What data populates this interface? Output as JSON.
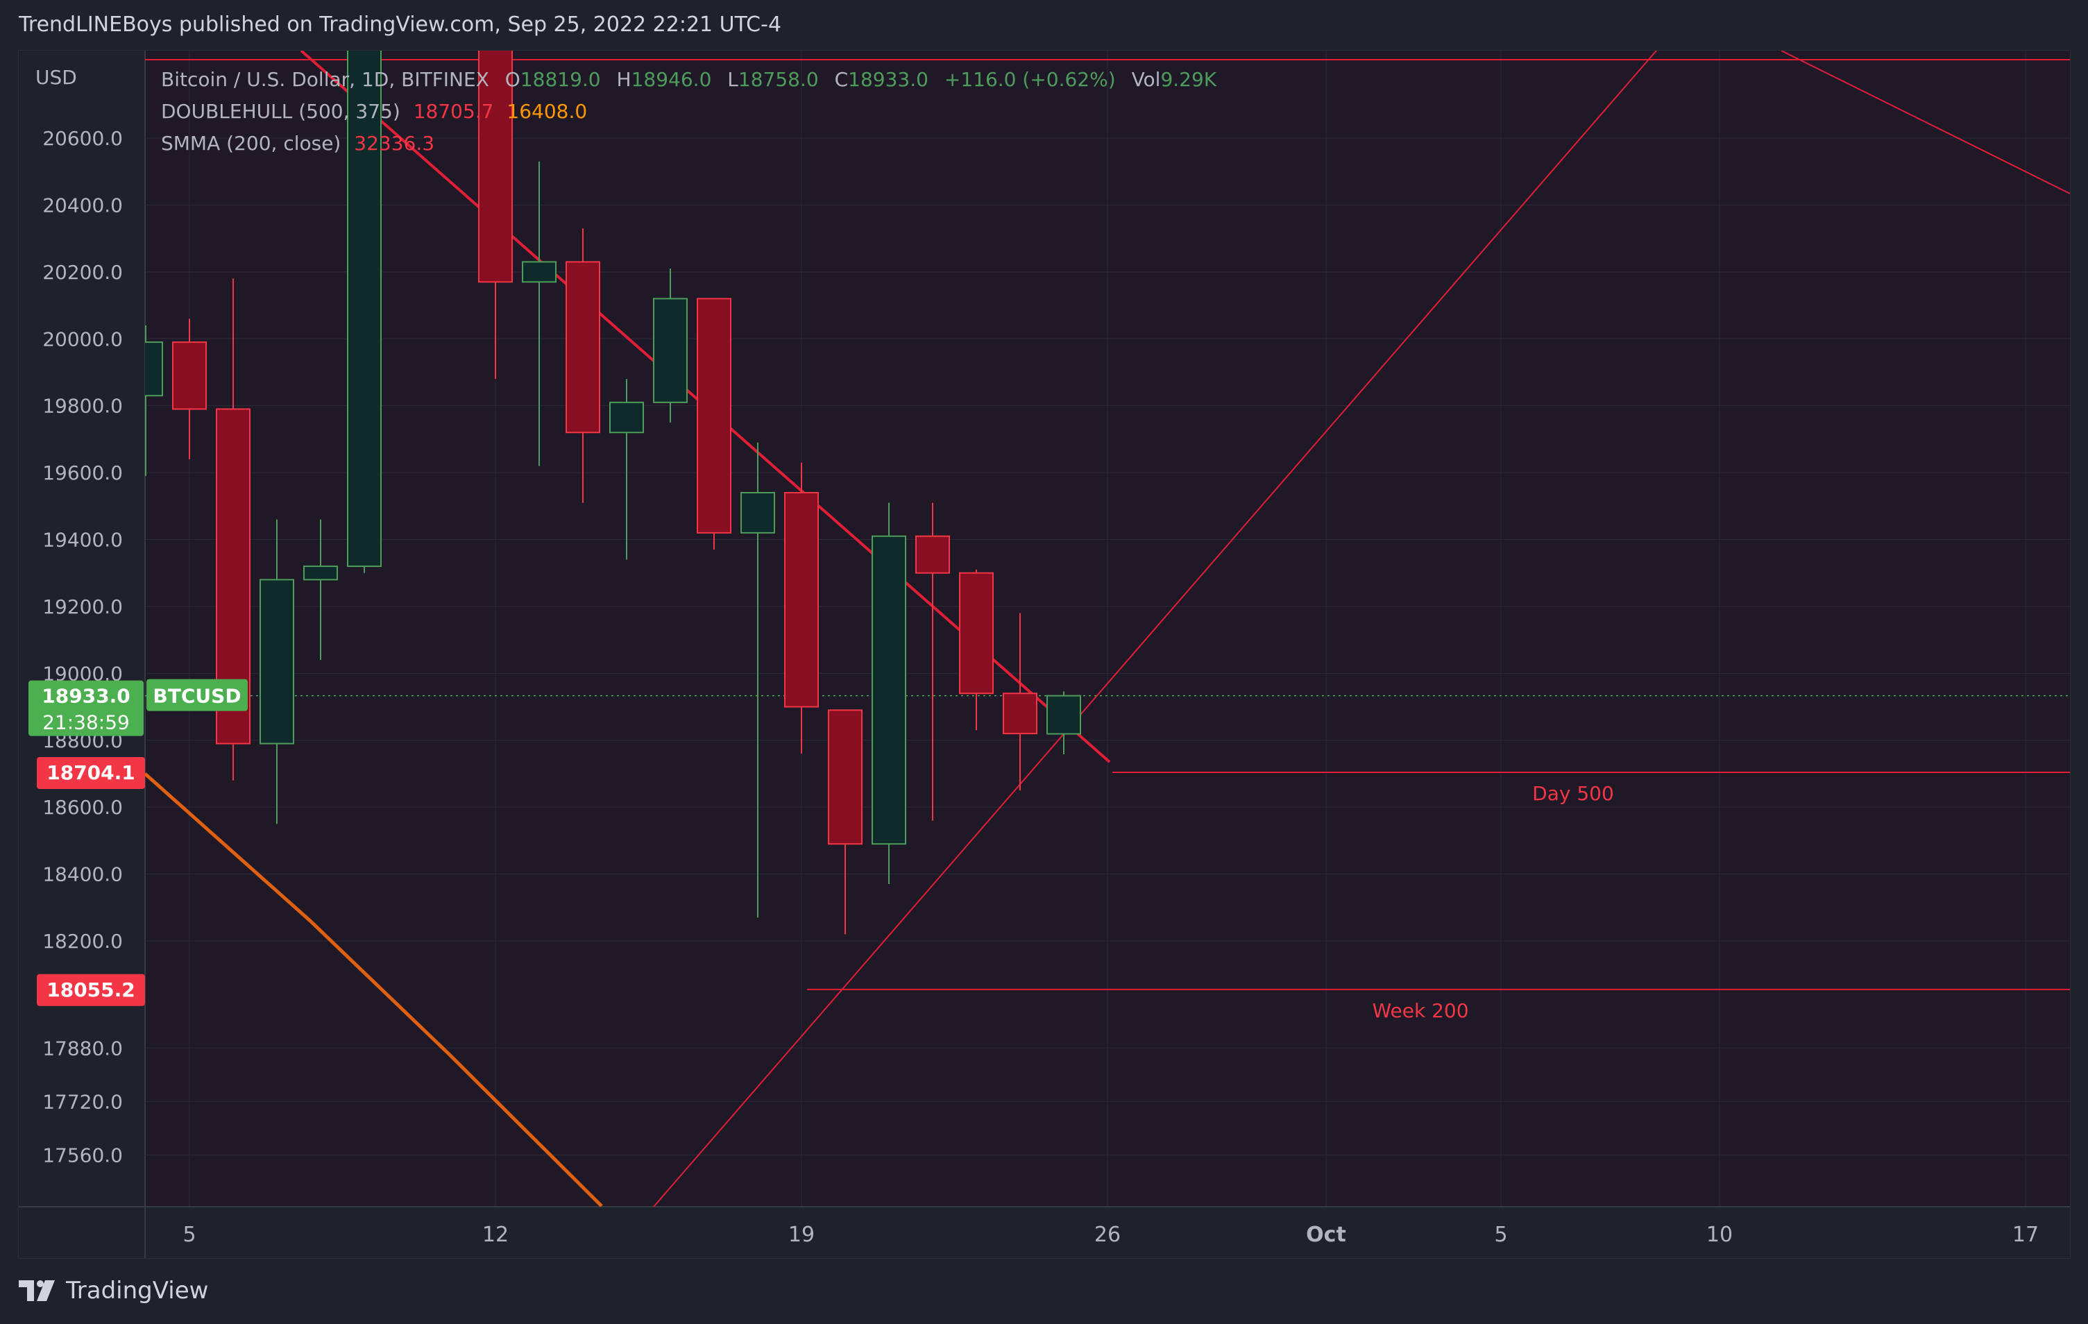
{
  "header": {
    "published_by": "TrendLINEBoys published on TradingView.com, Sep 25, 2022 22:21 UTC-4"
  },
  "legend": {
    "symbol_title": "Bitcoin / U.S. Dollar, 1D, BITFINEX",
    "o_label": "O",
    "o_value": "18819.0",
    "h_label": "H",
    "h_value": "18946.0",
    "l_label": "L",
    "l_value": "18758.0",
    "c_label": "C",
    "c_value": "18933.0",
    "change": "+116.0 (+0.62%)",
    "vol_label": "Vol",
    "vol_value": "9.29K",
    "ind1_name": "DOUBLEHULL (500, 375)",
    "ind1_v1": "18705.7",
    "ind1_v2": "16408.0",
    "ind2_name": "SMMA (200, close)",
    "ind2_v1": "32336.3"
  },
  "footer": {
    "brand": "TradingView"
  },
  "colors": {
    "up": "#4e9c5b",
    "down": "#f23645",
    "up_body": "#0e2a2a",
    "down_body": "#880e21",
    "line_red": "#e01e35",
    "line_orange": "#e06012",
    "plot_bg": "#1f1827",
    "grid": "#2c2a38",
    "axis_text": "#b2b5be",
    "last_price_green": "#4caf50"
  },
  "chart_data": {
    "type": "candlestick",
    "currency_label": "USD",
    "x_axis": {
      "tick_labels": [
        "5",
        "12",
        "19",
        "26",
        "Oct",
        "5",
        "10",
        "17"
      ],
      "tick_dates": [
        "2022-09-05",
        "2022-09-12",
        "2022-09-19",
        "2022-09-26",
        "2022-10-01",
        "2022-10-05",
        "2022-10-10",
        "2022-10-17"
      ]
    },
    "y_axis": {
      "tick_labels": [
        "20600.0",
        "20400.0",
        "20200.0",
        "20000.0",
        "19800.0",
        "19600.0",
        "19400.0",
        "19200.0",
        "19000.0",
        "18800.0",
        "18600.0",
        "18400.0",
        "18200.0",
        "17880.0",
        "17720.0",
        "17560.0"
      ],
      "ylim": [
        17440,
        20800
      ]
    },
    "candles": [
      {
        "date": "2022-09-04",
        "open": 19830,
        "high": 20040,
        "low": 19590,
        "close": 19990
      },
      {
        "date": "2022-09-05",
        "open": 19990,
        "high": 20060,
        "low": 19640,
        "close": 19790
      },
      {
        "date": "2022-09-06",
        "open": 19790,
        "high": 20180,
        "low": 18680,
        "close": 18790
      },
      {
        "date": "2022-09-07",
        "open": 18790,
        "high": 19460,
        "low": 18550,
        "close": 19280
      },
      {
        "date": "2022-09-08",
        "open": 19280,
        "high": 19460,
        "low": 19040,
        "close": 19320
      },
      {
        "date": "2022-09-09",
        "open": 19320,
        "high": 21400,
        "low": 19300,
        "close": 21360
      },
      {
        "date": "2022-09-12",
        "open": 21800,
        "high": 22400,
        "low": 19880,
        "close": 20170
      },
      {
        "date": "2022-09-13",
        "open": 20170,
        "high": 20530,
        "low": 19620,
        "close": 20230
      },
      {
        "date": "2022-09-14",
        "open": 20230,
        "high": 20330,
        "low": 19510,
        "close": 19720
      },
      {
        "date": "2022-09-15",
        "open": 19720,
        "high": 19880,
        "low": 19340,
        "close": 19810
      },
      {
        "date": "2022-09-16",
        "open": 19810,
        "high": 20210,
        "low": 19750,
        "close": 20120
      },
      {
        "date": "2022-09-17",
        "open": 20120,
        "high": 20120,
        "low": 19370,
        "close": 19420
      },
      {
        "date": "2022-09-18",
        "open": 19420,
        "high": 19690,
        "low": 18270,
        "close": 19540
      },
      {
        "date": "2022-09-19",
        "open": 19540,
        "high": 19630,
        "low": 18760,
        "close": 18900
      },
      {
        "date": "2022-09-20",
        "open": 18890,
        "high": 18890,
        "low": 18220,
        "close": 18490
      },
      {
        "date": "2022-09-21",
        "open": 18490,
        "high": 19510,
        "low": 18370,
        "close": 19410
      },
      {
        "date": "2022-09-22",
        "open": 19410,
        "high": 19510,
        "low": 18560,
        "close": 19300
      },
      {
        "date": "2022-09-23",
        "open": 19300,
        "high": 19310,
        "low": 18830,
        "close": 18940
      },
      {
        "date": "2022-09-24",
        "open": 18940,
        "high": 19180,
        "low": 18650,
        "close": 18820
      },
      {
        "date": "2022-09-25",
        "open": 18819,
        "high": 18946,
        "low": 18758,
        "close": 18933
      }
    ],
    "last_price": {
      "value": "18933.0",
      "countdown": "21:38:59",
      "symbol": "BTCUSD"
    },
    "price_labels": [
      {
        "value": "18704.1",
        "color": "#f23645"
      },
      {
        "value": "18055.2",
        "color": "#f23645"
      }
    ],
    "horizontal_levels": [
      {
        "label": "Day 500",
        "price": 18704
      },
      {
        "label": "Week 200",
        "price": 18055
      }
    ]
  }
}
